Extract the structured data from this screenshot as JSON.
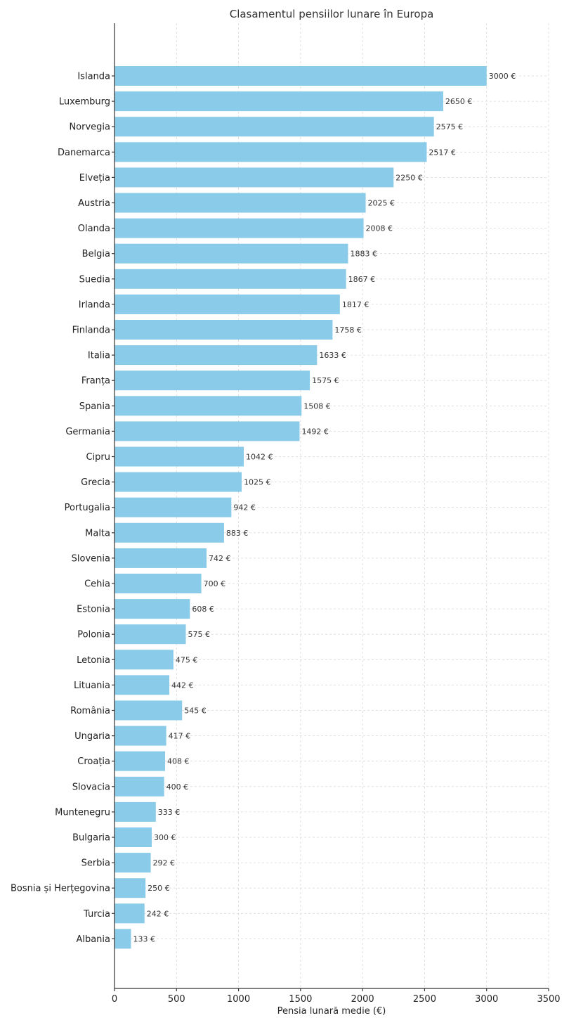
{
  "chart_data": {
    "type": "bar",
    "orientation": "horizontal",
    "title": "Clasamentul pensiilor lunare în Europa",
    "xlabel": "Pensia lunară medie (€)",
    "ylabel": "",
    "value_suffix": " €",
    "xlim": [
      0,
      3500
    ],
    "xticks": [
      0,
      500,
      1000,
      1500,
      2000,
      2500,
      3000,
      3500
    ],
    "grid": true,
    "bar_color": "#89cbe8",
    "categories": [
      "Islanda",
      "Luxemburg",
      "Norvegia",
      "Danemarca",
      "Elveția",
      "Austria",
      "Olanda",
      "Belgia",
      "Suedia",
      "Irlanda",
      "Finlanda",
      "Italia",
      "Franța",
      "Spania",
      "Germania",
      "Cipru",
      "Grecia",
      "Portugalia",
      "Malta",
      "Slovenia",
      "Cehia",
      "Estonia",
      "Polonia",
      "Letonia",
      "Lituania",
      "România",
      "Ungaria",
      "Croația",
      "Slovacia",
      "Muntenegru",
      "Bulgaria",
      "Serbia",
      "Bosnia și Herțegovina",
      "Turcia",
      "Albania"
    ],
    "values": [
      3000,
      2650,
      2575,
      2517,
      2250,
      2025,
      2008,
      1883,
      1867,
      1817,
      1758,
      1633,
      1575,
      1508,
      1492,
      1042,
      1025,
      942,
      883,
      742,
      700,
      608,
      575,
      475,
      442,
      545,
      417,
      408,
      400,
      333,
      300,
      292,
      250,
      242,
      133
    ]
  }
}
